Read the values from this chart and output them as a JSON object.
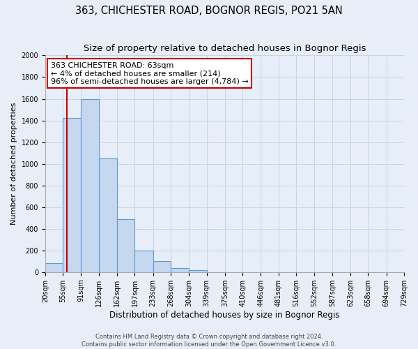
{
  "title": "363, CHICHESTER ROAD, BOGNOR REGIS, PO21 5AN",
  "subtitle": "Size of property relative to detached houses in Bognor Regis",
  "xlabel": "Distribution of detached houses by size in Bognor Regis",
  "ylabel": "Number of detached properties",
  "bin_edges": [
    20,
    55,
    91,
    126,
    162,
    197,
    233,
    268,
    304,
    339,
    375,
    410,
    446,
    481,
    516,
    552,
    587,
    623,
    658,
    694,
    729
  ],
  "bar_heights": [
    80,
    1420,
    1600,
    1050,
    490,
    200,
    100,
    35,
    20,
    0,
    0,
    0,
    0,
    0,
    0,
    0,
    0,
    0,
    0,
    0
  ],
  "bar_color": "#c5d8f0",
  "bar_edge_color": "#5b9bd5",
  "red_line_x": 63,
  "annotation_title": "363 CHICHESTER ROAD: 63sqm",
  "annotation_line1": "← 4% of detached houses are smaller (214)",
  "annotation_line2": "96% of semi-detached houses are larger (4,784) →",
  "annotation_box_facecolor": "#ffffff",
  "annotation_box_edgecolor": "#cc0000",
  "red_line_color": "#cc0000",
  "ylim": [
    0,
    2000
  ],
  "yticks": [
    0,
    200,
    400,
    600,
    800,
    1000,
    1200,
    1400,
    1600,
    1800,
    2000
  ],
  "grid_color": "#c8d4e8",
  "background_color": "#e8eef8",
  "footer_line1": "Contains HM Land Registry data © Crown copyright and database right 2024.",
  "footer_line2": "Contains public sector information licensed under the Open Government Licence v3.0.",
  "title_fontsize": 10.5,
  "subtitle_fontsize": 9.5,
  "xlabel_fontsize": 8.5,
  "ylabel_fontsize": 8,
  "tick_fontsize": 7,
  "annotation_fontsize": 8,
  "footer_fontsize": 6
}
